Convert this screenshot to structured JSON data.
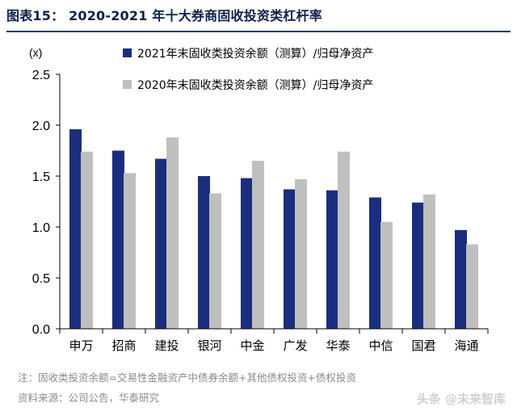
{
  "figure": {
    "title": "图表15：  2020-2021 年十大券商固收投资类杠杆率",
    "note": "注：固收类投资余额=交易性金融资产中债券余额+其他债权投资+债权投资",
    "source": "资料来源：公司公告，华泰研究",
    "watermark": "头条 @未来智库"
  },
  "colors": {
    "series_2021": "#1b2e7d",
    "series_2020": "#bfbfbf",
    "title": "#0b1f4a"
  },
  "chart_data": {
    "type": "bar",
    "unit_label": "(x)",
    "categories": [
      "申万",
      "招商",
      "建投",
      "银河",
      "中金",
      "广发",
      "华泰",
      "中信",
      "国君",
      "海通"
    ],
    "series": [
      {
        "name": "2021年末固收类投资余额（测算）/归母净资产",
        "color": "#1b2e7d",
        "values": [
          1.96,
          1.75,
          1.67,
          1.5,
          1.48,
          1.37,
          1.36,
          1.29,
          1.24,
          0.97
        ]
      },
      {
        "name": "2020年末固收类投资余额（测算）/归母净资产",
        "color": "#bfbfbf",
        "values": [
          1.74,
          1.53,
          1.88,
          1.33,
          1.65,
          1.47,
          1.74,
          1.05,
          1.32,
          0.83
        ]
      }
    ],
    "yticks": [
      "2.5",
      "2.0",
      "1.5",
      "1.0",
      "0.5",
      "0.0"
    ],
    "ylim": [
      0,
      2.5
    ],
    "legend_position": "top-right",
    "grid": false
  }
}
